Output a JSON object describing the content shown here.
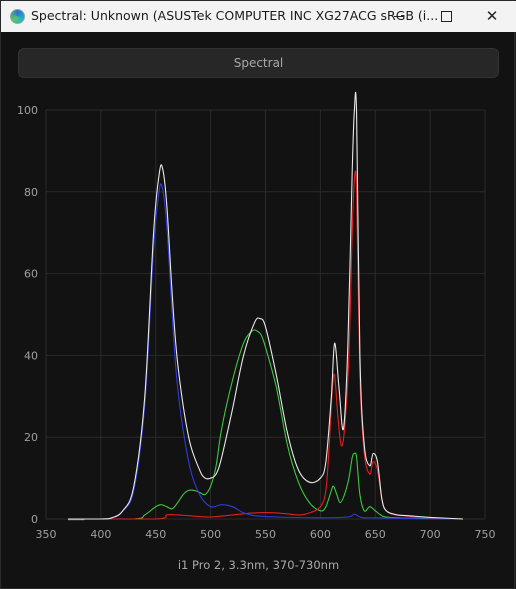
{
  "window": {
    "title": "Spectral: Unknown (ASUSTek COMPUTER INC XG27ACG sRGB (i...",
    "icon": "spectral-app-icon",
    "controls": [
      "minimize",
      "maximize",
      "close"
    ]
  },
  "toolbar": {
    "mode_label": "Spectral"
  },
  "instrument_label": "i1 Pro 2, 3.3nm, 370-730nm",
  "colors": {
    "background": "#121212",
    "grid": "#2a2a2a",
    "white": "#e8e8e8",
    "red": "#e02020",
    "green": "#3cc83c",
    "blue": "#2e3cdc"
  },
  "chart_data": {
    "type": "line",
    "title": "",
    "xlabel": "",
    "ylabel": "",
    "xlim": [
      350,
      750
    ],
    "ylim": [
      0,
      100
    ],
    "xticks": [
      350,
      400,
      450,
      500,
      550,
      600,
      650,
      700,
      750
    ],
    "yticks": [
      0,
      20,
      40,
      60,
      80,
      100
    ],
    "grid": true,
    "series": [
      {
        "color": "white",
        "x": [
          370,
          400,
          410,
          420,
          430,
          440,
          448,
          453,
          456,
          460,
          465,
          470,
          480,
          490,
          495,
          500,
          505,
          510,
          520,
          530,
          540,
          545,
          550,
          560,
          570,
          580,
          590,
          600,
          605,
          610,
          613,
          617,
          621,
          625,
          629,
          631,
          633,
          636,
          640,
          645,
          648,
          652,
          656,
          660,
          670,
          680,
          700,
          730
        ],
        "y": [
          0,
          0,
          0.3,
          2,
          8,
          30,
          70,
          84,
          86,
          77,
          55,
          38,
          20,
          12,
          10,
          10,
          11,
          15,
          27,
          40,
          48,
          49,
          47,
          35,
          21,
          12,
          9,
          10,
          14,
          30,
          43,
          32,
          22,
          42,
          85,
          100,
          99,
          40,
          18,
          13,
          16,
          14,
          5,
          2,
          1,
          0.8,
          0.4,
          0
        ]
      },
      {
        "color": "blue",
        "x": [
          370,
          400,
          410,
          420,
          430,
          440,
          448,
          453,
          456,
          460,
          465,
          470,
          480,
          490,
          500,
          510,
          520,
          530,
          540,
          560,
          600,
          625,
          631,
          635,
          640,
          650,
          700,
          730
        ],
        "y": [
          0,
          0,
          0.3,
          2,
          7,
          28,
          66,
          80,
          81,
          72,
          50,
          32,
          14,
          6,
          3,
          3.5,
          3,
          1.5,
          0.8,
          0.5,
          0.3,
          0.5,
          1.2,
          0.6,
          0.3,
          0.3,
          0,
          0
        ]
      },
      {
        "color": "green",
        "x": [
          370,
          430,
          440,
          450,
          455,
          460,
          465,
          470,
          475,
          480,
          485,
          490,
          495,
          500,
          505,
          510,
          520,
          530,
          538,
          542,
          546,
          550,
          560,
          570,
          580,
          590,
          600,
          605,
          610,
          612,
          615,
          618,
          622,
          626,
          629,
          631,
          633,
          636,
          640,
          645,
          650,
          655,
          660,
          680,
          730
        ],
        "y": [
          0,
          0,
          1,
          3,
          3.5,
          3,
          2.5,
          4,
          6,
          7,
          7,
          6.5,
          6,
          8,
          13,
          22,
          34,
          43,
          46,
          46,
          45,
          42,
          32,
          18,
          9,
          4,
          2,
          3,
          7,
          8,
          6,
          4,
          6,
          10,
          15,
          16,
          15,
          6,
          2,
          3,
          2,
          1,
          0.5,
          0.2,
          0
        ]
      },
      {
        "color": "red",
        "x": [
          370,
          450,
          460,
          470,
          480,
          500,
          520,
          540,
          560,
          580,
          590,
          600,
          605,
          608,
          611,
          613,
          616,
          619,
          622,
          626,
          629,
          631,
          633,
          636,
          640,
          645,
          648,
          652,
          656,
          660,
          670,
          700,
          730
        ],
        "y": [
          0,
          0,
          1,
          1,
          0.8,
          0.5,
          1,
          1.5,
          1.5,
          1,
          1.5,
          3,
          7,
          18,
          32,
          35,
          25,
          18,
          22,
          40,
          70,
          83,
          80,
          35,
          16,
          11,
          14,
          12,
          5,
          2,
          1,
          0.3,
          0
        ]
      }
    ]
  }
}
